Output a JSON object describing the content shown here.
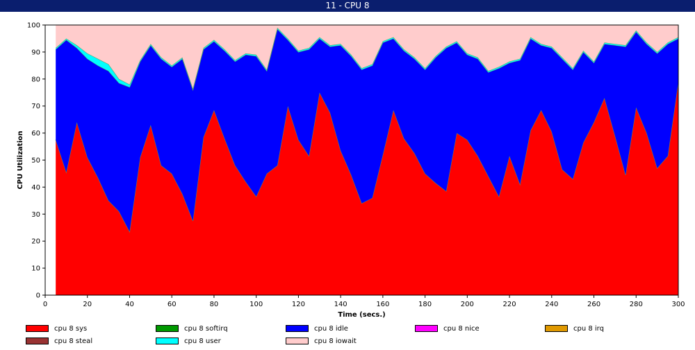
{
  "window": {
    "title": "11 - CPU 8"
  },
  "chart_data": {
    "type": "area",
    "stacked": true,
    "xlabel": "Time (secs.)",
    "ylabel": "CPU Utilization",
    "xlim": [
      0,
      300
    ],
    "ylim": [
      0,
      100
    ],
    "x_ticks": [
      0,
      20,
      40,
      60,
      80,
      100,
      120,
      140,
      160,
      180,
      200,
      220,
      240,
      260,
      280,
      300
    ],
    "y_ticks": [
      0,
      10,
      20,
      30,
      40,
      50,
      60,
      70,
      80,
      90,
      100
    ],
    "grid": false,
    "legend_position": "bottom",
    "x": [
      5,
      10,
      15,
      20,
      25,
      30,
      35,
      40,
      45,
      50,
      55,
      60,
      65,
      70,
      75,
      80,
      85,
      90,
      95,
      100,
      105,
      110,
      115,
      120,
      125,
      130,
      135,
      140,
      145,
      150,
      155,
      160,
      165,
      170,
      175,
      180,
      185,
      190,
      195,
      200,
      205,
      210,
      215,
      220,
      225,
      230,
      235,
      240,
      245,
      250,
      255,
      260,
      265,
      270,
      275,
      280,
      285,
      290,
      295,
      300
    ],
    "series": [
      {
        "name": "cpu 8 sys",
        "color": "#ff0000",
        "values": [
          57.5,
          45.5,
          64,
          51,
          43.5,
          35,
          31,
          23.5,
          51,
          63,
          48,
          45,
          37.5,
          27.5,
          58.5,
          68.5,
          58,
          48,
          42,
          36.5,
          45,
          48,
          70,
          57.5,
          51.5,
          75,
          67.5,
          53.5,
          44.5,
          34,
          36,
          52,
          68.5,
          58,
          52.5,
          45,
          41.5,
          38.5,
          60,
          57.5,
          51.5,
          44,
          36.5,
          51.5,
          41,
          61,
          68.5,
          60.5,
          46.5,
          43,
          56.5,
          64,
          73,
          59,
          44.5,
          69.5,
          60,
          47,
          51.5,
          79
        ]
      },
      {
        "name": "cpu 8 softirq",
        "color": "#009900",
        "values": [
          0,
          0,
          0,
          0,
          0,
          0,
          0,
          0,
          0,
          0,
          0,
          0,
          0,
          0,
          0,
          0,
          0,
          0,
          0,
          0,
          0,
          0,
          0,
          0,
          0,
          0,
          0,
          0,
          0,
          0,
          0,
          0,
          0,
          0,
          0,
          0,
          0,
          0,
          0,
          0,
          0,
          0,
          0,
          0,
          0,
          0,
          0,
          0,
          0,
          0,
          0,
          0,
          0,
          0,
          0,
          0,
          0,
          0,
          0,
          0
        ]
      },
      {
        "name": "cpu 8 idle",
        "color": "#0000ff",
        "values": [
          33.5,
          49,
          27.5,
          36.5,
          41.5,
          48,
          47.5,
          53.5,
          35.5,
          29.5,
          39.5,
          39.5,
          50,
          48.5,
          32.5,
          25.5,
          32.5,
          38.5,
          47,
          52,
          38,
          50.5,
          24.5,
          32.5,
          39.5,
          20,
          24.5,
          39,
          44,
          49.5,
          49,
          41.5,
          26.5,
          32.5,
          35,
          38.5,
          46.5,
          53,
          33.5,
          31.5,
          36,
          38.5,
          47.5,
          34.5,
          46,
          34,
          24,
          31,
          41,
          40.5,
          33.5,
          22,
          20,
          33.5,
          47.5,
          28,
          33,
          42.5,
          41.5,
          16
        ]
      },
      {
        "name": "cpu 8 nice",
        "color": "#ff00ff",
        "values": [
          0,
          0,
          0,
          0,
          0,
          0,
          0,
          0,
          0,
          0,
          0,
          0,
          0,
          0,
          0,
          0,
          0,
          0,
          0,
          0,
          0,
          0,
          0,
          0,
          0,
          0,
          0,
          0,
          0,
          0,
          0,
          0,
          0,
          0,
          0,
          0,
          0,
          0,
          0,
          0,
          0,
          0,
          0,
          0,
          0,
          0,
          0,
          0,
          0,
          0,
          0,
          0,
          0,
          0,
          0,
          0,
          0,
          0,
          0,
          0
        ]
      },
      {
        "name": "cpu 8 irq",
        "color": "#e09900",
        "values": [
          0,
          0,
          0,
          0,
          0,
          0,
          0,
          0,
          0,
          0,
          0,
          0,
          0,
          0,
          0,
          0,
          0,
          0,
          0,
          0,
          0,
          0,
          0,
          0,
          0,
          0,
          0,
          0,
          0,
          0,
          0,
          0,
          0,
          0,
          0,
          0,
          0,
          0,
          0,
          0,
          0,
          0,
          0,
          0,
          0,
          0,
          0,
          0,
          0,
          0,
          0,
          0,
          0,
          0,
          0,
          0,
          0,
          0,
          0,
          0
        ]
      },
      {
        "name": "cpu 8 steal",
        "color": "#993333",
        "values": [
          0,
          0,
          0,
          0,
          0,
          0,
          0,
          0,
          0,
          0,
          0,
          0,
          0,
          0,
          0,
          0,
          0,
          0,
          0,
          0,
          0,
          0,
          0,
          0,
          0,
          0,
          0,
          0,
          0,
          0,
          0,
          0,
          0,
          0,
          0,
          0,
          0,
          0,
          0,
          0,
          0,
          0,
          0,
          0,
          0,
          0,
          0,
          0,
          0,
          0,
          0,
          0,
          0,
          0,
          0,
          0,
          0,
          0,
          0,
          0
        ]
      },
      {
        "name": "cpu 8 user",
        "color": "#00ffff",
        "values": [
          0.5,
          0.5,
          1,
          2,
          2.5,
          2.5,
          1.5,
          1,
          0.5,
          0.5,
          0.5,
          0.5,
          0.5,
          0.5,
          0.5,
          0.5,
          0.5,
          0.5,
          0.5,
          0.5,
          0.5,
          0.5,
          0.5,
          0.5,
          0.5,
          0.5,
          0.5,
          0.5,
          0.5,
          0.5,
          0.5,
          0.5,
          0.5,
          0.5,
          0.5,
          0.5,
          0.5,
          0.5,
          0.5,
          0.5,
          0.5,
          0.5,
          0.5,
          0.5,
          0.5,
          0.5,
          0.5,
          0.5,
          0.5,
          0.5,
          0.5,
          0.5,
          0.5,
          0.5,
          0.5,
          0.5,
          0.5,
          0.5,
          0.5,
          0.5
        ]
      },
      {
        "name": "cpu 8 iowait",
        "color": "#ffcccc",
        "values": [
          8.5,
          5,
          7.5,
          10.5,
          12.5,
          14.5,
          20,
          22,
          13,
          7,
          12,
          15,
          12,
          23.5,
          8.5,
          5.5,
          9,
          13,
          10.5,
          11,
          16.5,
          1,
          5,
          9.5,
          8.5,
          4.5,
          7.5,
          7,
          11,
          16,
          14.5,
          6,
          4.5,
          9,
          12,
          16,
          11.5,
          8,
          6,
          10.5,
          12,
          17,
          15.5,
          13.5,
          12.5,
          4.5,
          7,
          8,
          12,
          16,
          9.5,
          13.5,
          6.5,
          7,
          7.5,
          2,
          6.5,
          10,
          6.5,
          4.5
        ]
      }
    ]
  },
  "legend": {
    "items": [
      {
        "label": "cpu 8 sys",
        "color": "#ff0000"
      },
      {
        "label": "cpu 8 softirq",
        "color": "#009900"
      },
      {
        "label": "cpu 8 idle",
        "color": "#0000ff"
      },
      {
        "label": "cpu 8 nice",
        "color": "#ff00ff"
      },
      {
        "label": "cpu 8 irq",
        "color": "#e09900"
      },
      {
        "label": "cpu 8 steal",
        "color": "#993333"
      },
      {
        "label": "cpu 8 user",
        "color": "#00ffff"
      },
      {
        "label": "cpu 8 iowait",
        "color": "#ffcccc"
      }
    ]
  }
}
